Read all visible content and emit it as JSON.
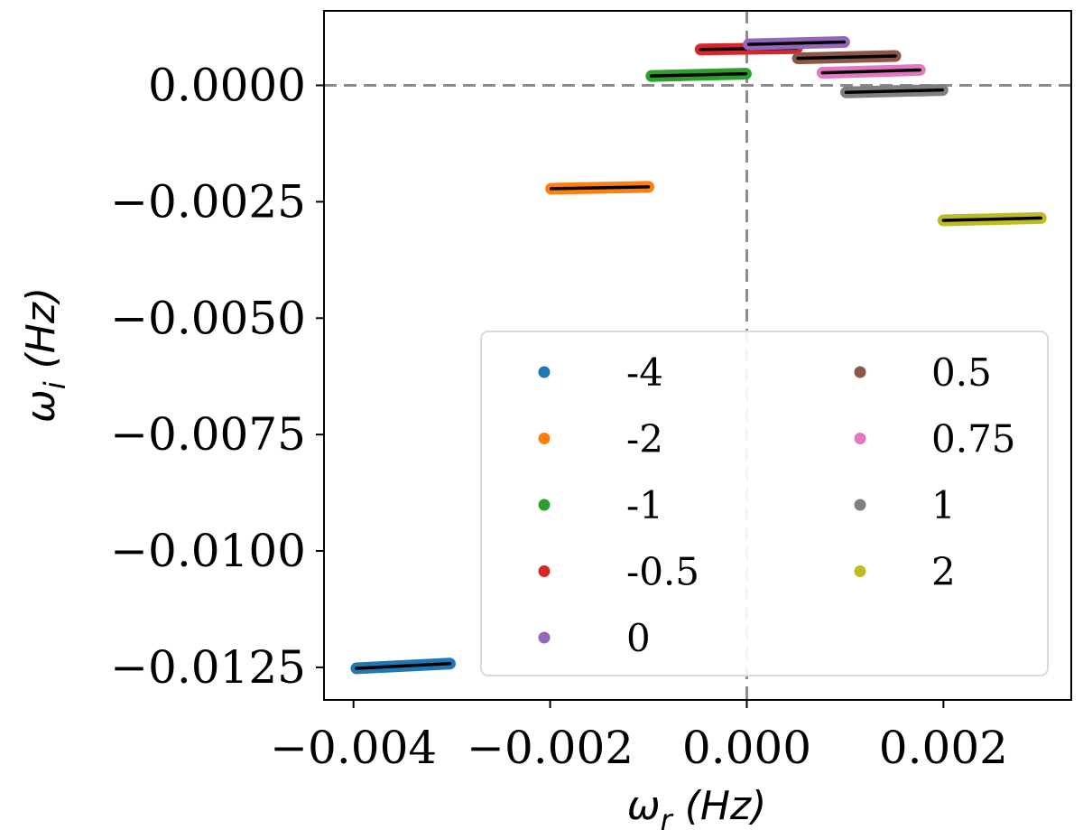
{
  "chart_data": {
    "type": "scatter",
    "xlabel": "ωr (Hz)",
    "ylabel": "ωi (Hz)",
    "xlabel_main": "ω",
    "xlabel_sub": "r",
    "xlabel_unit": " (Hz)",
    "ylabel_main": "ω",
    "ylabel_sub": "i",
    "ylabel_unit": " (Hz)",
    "xlim": [
      -0.0043,
      0.0033
    ],
    "ylim": [
      -0.0132,
      0.0016
    ],
    "xticks": [
      -0.004,
      -0.002,
      0.0,
      0.002
    ],
    "xtick_labels": [
      "−0.004",
      "−0.002",
      "0.000",
      "0.002"
    ],
    "yticks": [
      0.0,
      -0.0025,
      -0.005,
      -0.0075,
      -0.01,
      -0.0125
    ],
    "ytick_labels": [
      "0.0000",
      "−0.0025",
      "−0.0050",
      "−0.0075",
      "−0.0100",
      "−0.0125"
    ],
    "reference_lines": {
      "x": 0.0,
      "y": 0.0,
      "color": "#8c8c8c",
      "style": "dashed"
    },
    "grid": false,
    "legend": {
      "placement": "lower-right",
      "columns": 2
    },
    "series": [
      {
        "name": "-4",
        "color": "#1f77b4",
        "x": [
          -0.00397,
          -0.00302
        ],
        "y": [
          -0.01252,
          -0.01242
        ]
      },
      {
        "name": "-2",
        "color": "#ff7f0e",
        "x": [
          -0.00199,
          -0.001
        ],
        "y": [
          -0.00222,
          -0.00218
        ]
      },
      {
        "name": "-1",
        "color": "#2ca02c",
        "x": [
          -0.00097,
          -1e-05
        ],
        "y": [
          0.0002,
          0.00025
        ]
      },
      {
        "name": "-0.5",
        "color": "#d62728",
        "x": [
          -0.00047,
          0.00051
        ],
        "y": [
          0.00077,
          0.0008
        ]
      },
      {
        "name": "0",
        "color": "#9467bd",
        "x": [
          2e-05,
          0.00099
        ],
        "y": [
          0.00088,
          0.00093
        ]
      },
      {
        "name": "0.5",
        "color": "#8c564b",
        "x": [
          0.00052,
          0.00151
        ],
        "y": [
          0.00058,
          0.00063
        ]
      },
      {
        "name": "0.75",
        "color": "#e377c2",
        "x": [
          0.00077,
          0.00176
        ],
        "y": [
          0.00027,
          0.00033
        ]
      },
      {
        "name": "1",
        "color": "#7f7f7f",
        "x": [
          0.00101,
          0.00199
        ],
        "y": [
          -0.00015,
          -0.0001
        ]
      },
      {
        "name": "2",
        "color": "#bcbd22",
        "x": [
          0.002,
          0.00299
        ],
        "y": [
          -0.0029,
          -0.00285
        ]
      }
    ]
  }
}
